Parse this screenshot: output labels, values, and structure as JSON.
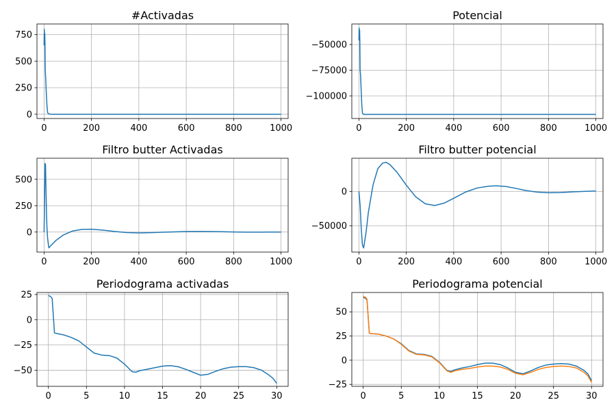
{
  "chart_data": [
    {
      "type": "line",
      "title": "#Activadas",
      "xlim": [
        -30,
        1030
      ],
      "ylim": [
        -40,
        850
      ],
      "xticks": [
        0,
        200,
        400,
        600,
        800,
        1000
      ],
      "xtick_labels": [
        "0",
        "200",
        "400",
        "600",
        "800",
        "1000"
      ],
      "yticks": [
        0,
        250,
        500,
        750
      ],
      "ytick_labels": [
        "0",
        "250",
        "500",
        "750"
      ],
      "grid": true,
      "series": [
        {
          "color": "#1f77b4",
          "x": [
            0,
            1,
            2,
            3,
            4,
            5,
            7,
            9,
            12,
            15,
            20,
            30,
            100,
            500,
            1000
          ],
          "y": [
            650,
            800,
            700,
            760,
            640,
            420,
            330,
            220,
            90,
            15,
            3,
            0,
            0,
            0,
            0
          ]
        }
      ]
    },
    {
      "type": "line",
      "title": "Potencial",
      "xlim": [
        -30,
        1030
      ],
      "ylim": [
        -122000,
        -30000
      ],
      "xticks": [
        0,
        200,
        400,
        600,
        800,
        1000
      ],
      "xtick_labels": [
        "0",
        "200",
        "400",
        "600",
        "800",
        "1000"
      ],
      "yticks": [
        -100000,
        -75000,
        -50000
      ],
      "ytick_labels": [
        "−100000",
        "−75000",
        "−50000"
      ],
      "grid": true,
      "series": [
        {
          "color": "#1f77b4",
          "x": [
            0,
            1,
            2,
            3,
            4,
            5,
            7,
            10,
            12,
            15,
            20,
            100,
            500,
            1000
          ],
          "y": [
            -46000,
            -34000,
            -38000,
            -36000,
            -48000,
            -74000,
            -80000,
            -97000,
            -108000,
            -117000,
            -118000,
            -118000,
            -118000,
            -118000
          ]
        }
      ]
    },
    {
      "type": "line",
      "title": "Filtro butter Activadas",
      "xlim": [
        -30,
        1030
      ],
      "ylim": [
        -190,
        700
      ],
      "xticks": [
        0,
        200,
        400,
        600,
        800,
        1000
      ],
      "xtick_labels": [
        "0",
        "200",
        "400",
        "600",
        "800",
        "1000"
      ],
      "yticks": [
        0,
        250,
        500
      ],
      "ytick_labels": [
        "0",
        "250",
        "500"
      ],
      "grid": true,
      "series": [
        {
          "color": "#1f77b4",
          "x": [
            0,
            2,
            4,
            6,
            8,
            10,
            12,
            15,
            20,
            30,
            50,
            80,
            120,
            160,
            200,
            250,
            300,
            350,
            400,
            450,
            500,
            550,
            600,
            650,
            700,
            750,
            800,
            850,
            900,
            950,
            1000
          ],
          "y": [
            0,
            280,
            650,
            640,
            420,
            200,
            50,
            -60,
            -150,
            -125,
            -80,
            -30,
            10,
            25,
            27,
            18,
            5,
            -5,
            -8,
            -6,
            -2,
            2,
            5,
            6,
            5,
            3,
            1,
            -1,
            -1,
            0,
            0
          ]
        }
      ]
    },
    {
      "type": "line",
      "title": "Filtro butter potencial",
      "xlim": [
        -30,
        1030
      ],
      "ylim": [
        -88000,
        48000
      ],
      "xticks": [
        0,
        200,
        400,
        600,
        800,
        1000
      ],
      "xtick_labels": [
        "0",
        "200",
        "400",
        "600",
        "800",
        "1000"
      ],
      "yticks": [
        -50000,
        0
      ],
      "ytick_labels": [
        "−50000",
        "0"
      ],
      "grid": true,
      "series": [
        {
          "color": "#1f77b4",
          "x": [
            0,
            5,
            10,
            15,
            20,
            30,
            40,
            60,
            80,
            100,
            115,
            130,
            160,
            200,
            240,
            280,
            320,
            360,
            400,
            450,
            500,
            550,
            580,
            620,
            660,
            700,
            750,
            800,
            850,
            900,
            950,
            1000
          ],
          "y": [
            0,
            -20000,
            -55000,
            -78000,
            -82000,
            -60000,
            -30000,
            10000,
            33000,
            41000,
            42000,
            39000,
            28000,
            9000,
            -8000,
            -18000,
            -20500,
            -17000,
            -10000,
            -1000,
            5000,
            7500,
            8000,
            7000,
            4500,
            1500,
            -1000,
            -2000,
            -1800,
            -800,
            0,
            500
          ]
        }
      ]
    },
    {
      "type": "line",
      "title": "Periodograma activadas",
      "xlim": [
        -1.5,
        31.5
      ],
      "ylim": [
        -66,
        27
      ],
      "xticks": [
        0,
        5,
        10,
        15,
        20,
        25,
        30
      ],
      "xtick_labels": [
        "0",
        "5",
        "10",
        "15",
        "20",
        "25",
        "30"
      ],
      "yticks": [
        -50,
        -25,
        0,
        25
      ],
      "ytick_labels": [
        "−50",
        "−25",
        "0",
        "25"
      ],
      "grid": true,
      "series": [
        {
          "color": "#1f77b4",
          "x": [
            0,
            0.3,
            0.5,
            0.8,
            1,
            2,
            3,
            4,
            5,
            6,
            7,
            8,
            9,
            10,
            11,
            11.5,
            12,
            13,
            14,
            15,
            16,
            17,
            18,
            19,
            20,
            21,
            22,
            23,
            24,
            25,
            26,
            27,
            28,
            29,
            29.5,
            30
          ],
          "y": [
            24,
            23,
            21,
            -13,
            -13.5,
            -15,
            -17.5,
            -21,
            -27,
            -33,
            -35,
            -35.5,
            -38,
            -44,
            -51.5,
            -52,
            -50.5,
            -49,
            -47.5,
            -46,
            -45.5,
            -46.5,
            -49,
            -52,
            -55,
            -54,
            -51,
            -48.5,
            -47,
            -46.5,
            -46.5,
            -47.5,
            -50,
            -55,
            -58,
            -63
          ]
        }
      ]
    },
    {
      "type": "line",
      "title": "Periodograma potencial",
      "xlim": [
        -1.5,
        31.5
      ],
      "ylim": [
        -27,
        70
      ],
      "xticks": [
        0,
        5,
        10,
        15,
        20,
        25,
        30
      ],
      "xtick_labels": [
        "0",
        "5",
        "10",
        "15",
        "20",
        "25",
        "30"
      ],
      "yticks": [
        -25,
        0,
        25,
        50
      ],
      "ytick_labels": [
        "−25",
        "0",
        "25",
        "50"
      ],
      "grid": true,
      "series": [
        {
          "color": "#1f77b4",
          "x": [
            0,
            0.3,
            0.5,
            0.8,
            1,
            2,
            3,
            4,
            5,
            6,
            7,
            8,
            9,
            10,
            11,
            11.5,
            12,
            13,
            14,
            15,
            16,
            17,
            18,
            19,
            20,
            21,
            22,
            23,
            24,
            25,
            26,
            27,
            28,
            29,
            29.5,
            30
          ],
          "y": [
            65,
            64,
            62,
            28,
            27.5,
            27,
            25,
            22,
            17,
            10,
            6.5,
            6,
            4,
            -2,
            -10.5,
            -11.5,
            -10,
            -8,
            -6.5,
            -4.5,
            -3,
            -3,
            -4.5,
            -8,
            -12.5,
            -14,
            -11,
            -7.5,
            -5,
            -4,
            -3.5,
            -4,
            -6,
            -10.5,
            -14,
            -21
          ]
        },
        {
          "color": "#ff7f0e",
          "x": [
            0,
            0.3,
            0.5,
            0.8,
            1,
            2,
            3,
            4,
            5,
            6,
            7,
            8,
            9,
            10,
            11,
            11.5,
            12,
            13,
            14,
            15,
            16,
            17,
            18,
            19,
            20,
            21,
            22,
            23,
            24,
            25,
            26,
            27,
            28,
            29,
            29.5,
            30
          ],
          "y": [
            66,
            65,
            63,
            28,
            27.5,
            27,
            25,
            22,
            16.5,
            9.5,
            6,
            5.5,
            3.5,
            -2.5,
            -11,
            -12.5,
            -11,
            -9.5,
            -8.5,
            -7,
            -6,
            -6,
            -7,
            -9.5,
            -13.5,
            -15,
            -12.5,
            -9.5,
            -7.5,
            -6.5,
            -6,
            -6.5,
            -8,
            -12.5,
            -16,
            -23
          ]
        }
      ]
    }
  ]
}
